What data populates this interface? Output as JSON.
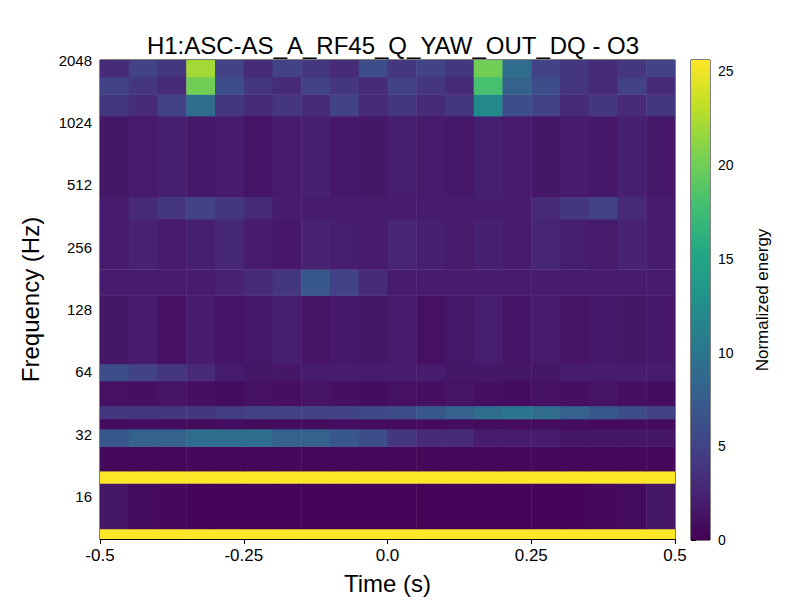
{
  "chart_data": {
    "type": "spectrogram",
    "title": "H1:ASC-AS_A_RF45_Q_YAW_OUT_DQ - O3",
    "xlabel": "Time (s)",
    "ylabel": "Frequency (Hz)",
    "log": "y",
    "grid": false,
    "xlim": [
      -0.5,
      0.5
    ],
    "xticks": [
      -0.5,
      -0.25,
      {
        "value": 0,
        "label": "0.0"
      },
      0.25,
      0.5
    ],
    "ylim": [
      10,
      2048
    ],
    "yticks": [
      16,
      32,
      64,
      128,
      256,
      512,
      1024,
      2048
    ],
    "x_edges": [
      -0.5,
      -0.45,
      -0.4,
      -0.35,
      -0.3,
      -0.25,
      -0.2,
      -0.15,
      -0.1,
      -0.05,
      0,
      0.05,
      0.1,
      0.15,
      0.2,
      0.25,
      0.3,
      0.35,
      0.4,
      0.45,
      0.5
    ],
    "y_edges": [
      10,
      11.2,
      18.6,
      21.3,
      28,
      34,
      38,
      44,
      58,
      70,
      150,
      200,
      350,
      450,
      1100,
      1400,
      1700,
      2048
    ],
    "cells": [
      [
        25.5,
        25.5,
        25.5,
        25.5,
        25.5,
        25.5,
        25.5,
        25.5,
        25.5,
        25.5,
        25.5,
        25.5,
        25.5,
        25.5,
        25.5,
        25.5,
        25.5,
        25.5,
        25.5,
        25.5
      ],
      [
        1.5,
        0.8,
        0.5,
        0.4,
        0.4,
        0.3,
        0.3,
        0.3,
        0.3,
        0.3,
        0.3,
        0.3,
        0.3,
        0.3,
        0.3,
        0.4,
        0.4,
        0.5,
        0.8,
        1.5
      ],
      [
        25.5,
        25.5,
        25.5,
        25.5,
        25.5,
        25.5,
        25.5,
        25.5,
        25.5,
        25.5,
        25.5,
        25.5,
        25.5,
        25.5,
        25.5,
        25.5,
        25.5,
        25.5,
        25.5,
        25.5
      ],
      [
        0.6,
        0.5,
        0.5,
        0.6,
        0.5,
        0.5,
        0.6,
        0.5,
        0.5,
        0.6,
        0.5,
        0.5,
        0.6,
        0.5,
        0.5,
        0.6,
        0.5,
        0.5,
        0.6,
        0.5
      ],
      [
        7,
        8,
        8,
        9,
        9,
        9,
        8,
        8,
        7,
        6,
        4,
        3,
        3,
        2,
        2,
        2,
        1.5,
        1.5,
        1.5,
        1.5
      ],
      [
        0.8,
        0.9,
        0.7,
        0.8,
        0.9,
        0.8,
        0.7,
        0.8,
        0.9,
        0.8,
        0.7,
        0.8,
        0.9,
        0.8,
        0.7,
        0.8,
        0.9,
        0.8,
        0.7,
        0.8
      ],
      [
        4,
        4,
        4,
        4,
        4.5,
        5,
        5,
        5,
        5,
        5.5,
        6,
        7,
        8,
        9,
        10,
        9,
        8,
        7,
        6,
        5
      ],
      [
        1.2,
        1,
        1.3,
        1.1,
        0.9,
        1.2,
        1,
        1.3,
        1.1,
        0.9,
        1.2,
        1,
        1.3,
        1.1,
        0.9,
        1.2,
        1,
        1.3,
        1.1,
        0.9
      ],
      [
        6,
        5,
        4,
        3,
        2,
        1.5,
        1.5,
        2,
        2,
        2,
        2,
        2,
        1.5,
        1.5,
        1.5,
        1.5,
        2,
        2,
        2,
        2
      ],
      [
        1.5,
        1.8,
        1.2,
        2,
        1.4,
        1.6,
        2.2,
        1.3,
        1.7,
        1.5,
        1.9,
        1.2,
        1.6,
        2.1,
        1.4,
        1.8,
        1.3,
        1.7,
        1.5,
        1.6
      ],
      [
        2,
        2,
        2,
        2,
        2.5,
        3,
        4,
        7,
        5,
        3,
        2,
        2,
        2,
        2,
        2,
        2,
        2,
        2,
        2,
        2
      ],
      [
        2,
        2.5,
        1.8,
        2.2,
        2.8,
        2,
        1.7,
        2.4,
        2.1,
        1.9,
        2.6,
        2.2,
        1.8,
        2.3,
        2,
        2.7,
        2.1,
        1.9,
        2.4,
        2
      ],
      [
        2,
        3,
        4,
        5,
        4,
        3,
        2,
        2,
        2,
        2,
        2,
        2,
        2,
        2,
        2,
        3,
        4,
        5,
        3,
        2
      ],
      [
        1.5,
        1.8,
        2.2,
        1.6,
        2,
        1.4,
        1.9,
        2.3,
        1.7,
        1.5,
        2.1,
        1.8,
        1.6,
        2.2,
        1.9,
        1.5,
        2,
        1.7,
        2.3,
        1.6
      ],
      [
        4,
        3,
        5,
        9,
        4,
        3,
        4,
        3,
        5,
        3,
        4,
        3,
        4,
        12,
        6,
        5,
        3,
        4,
        3,
        4
      ],
      [
        5,
        4,
        3,
        20,
        6,
        4,
        3,
        5,
        4,
        3,
        5,
        4,
        3,
        18,
        8,
        6,
        4,
        3,
        5,
        3
      ],
      [
        3,
        5,
        4,
        22,
        5,
        3,
        5,
        4,
        3,
        6,
        4,
        5,
        4,
        20,
        9,
        5,
        4,
        3,
        4,
        5
      ]
    ],
    "colorbar_label": "Normalized energy",
    "clim": [
      0,
      25.6
    ],
    "cticks": [
      0,
      5,
      10,
      15,
      20,
      25
    ]
  }
}
